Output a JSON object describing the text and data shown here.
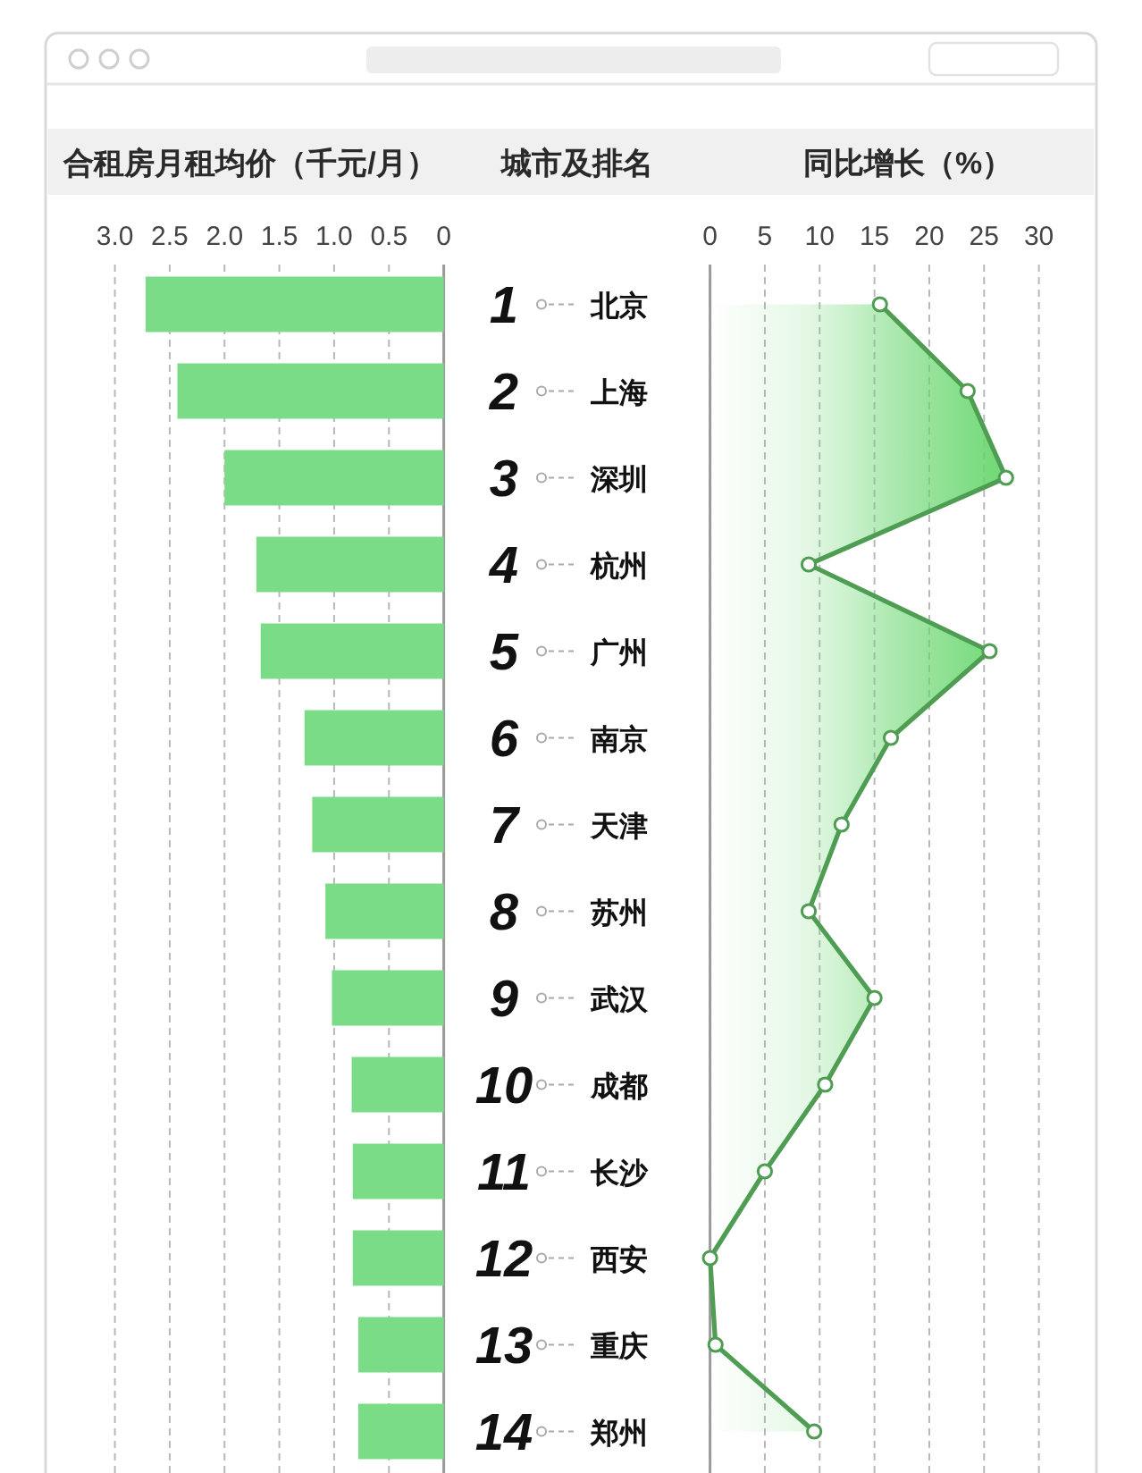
{
  "chart_data": [
    {
      "type": "bar",
      "orientation": "horizontal",
      "title": "合租房月租均价（千元/月）",
      "ylabel": "城市及排名",
      "categories": [
        "1 北京",
        "2 上海",
        "3 深圳",
        "4 杭州",
        "5 广州",
        "6 南京",
        "7 天津",
        "8 苏州",
        "9 武汉",
        "10 成都",
        "11 长沙",
        "12 西安",
        "13 重庆",
        "14 郑州"
      ],
      "values": [
        2.72,
        2.43,
        2.0,
        1.71,
        1.67,
        1.27,
        1.2,
        1.08,
        1.02,
        0.84,
        0.83,
        0.83,
        0.78,
        0.78
      ],
      "color": "#7bdc87",
      "xlim": [
        3,
        0
      ],
      "xticks": [
        {
          "value": 3,
          "label": "3.0"
        },
        2.5,
        {
          "value": 2,
          "label": "2.0"
        },
        1.5,
        {
          "value": 1,
          "label": "1.0"
        },
        0.5,
        0
      ],
      "grid": "x"
    },
    {
      "type": "area",
      "orientation": "horizontal",
      "title": "同比增长（%）",
      "categories": [
        "1 北京",
        "2 上海",
        "3 深圳",
        "4 杭州",
        "5 广州",
        "6 南京",
        "7 天津",
        "8 苏州",
        "9 武汉",
        "10 成都",
        "11 长沙",
        "12 西安",
        "13 重庆",
        "14 郑州"
      ],
      "tick_labels": "x",
      "values": [
        15.5,
        23.5,
        27,
        9,
        25.5,
        16.5,
        12,
        9,
        15,
        10.5,
        5,
        0,
        0.5,
        9.5
      ],
      "color": "#4f9d53",
      "marker": "circle",
      "xlim": [
        0,
        30
      ],
      "xticks": [
        0,
        5,
        10,
        15,
        20,
        25,
        30
      ],
      "grid": "x"
    }
  ]
}
